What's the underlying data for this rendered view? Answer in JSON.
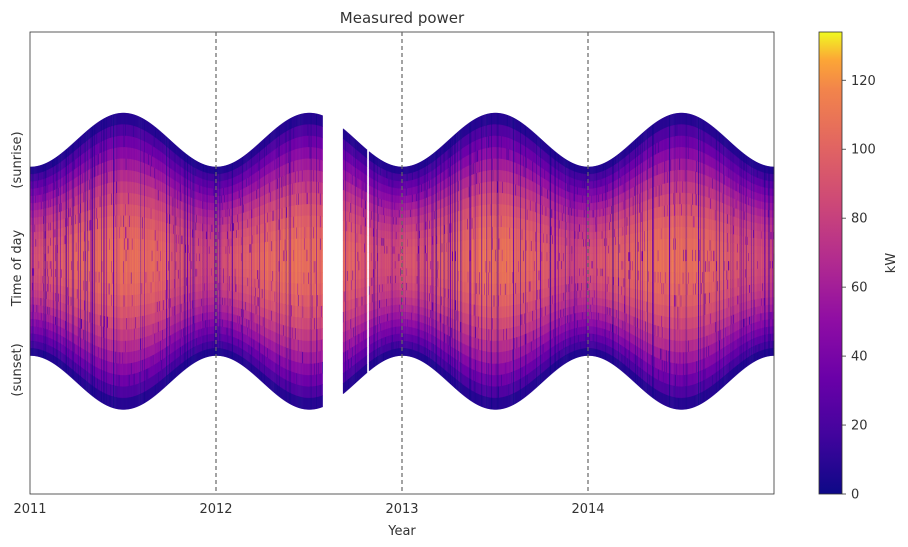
{
  "chart_data": {
    "type": "heatmap",
    "title": "Measured power",
    "xlabel": "Year",
    "ylabel": "Time of day",
    "y_tick_labels": [
      "(sunrise)",
      "(sunset)"
    ],
    "x_ticks": [
      "2011",
      "2012",
      "2013",
      "2014"
    ],
    "x_range": [
      2011.0,
      2015.0
    ],
    "vertical_reference_lines": [
      2012.0,
      2013.0,
      2014.0
    ],
    "colorbar": {
      "label": "kW",
      "colormap": "plasma",
      "range": [
        0,
        134
      ],
      "ticks": [
        0,
        20,
        40,
        60,
        80,
        100,
        120
      ]
    },
    "data_gaps_years": [
      [
        2012.57,
        2012.68
      ],
      [
        2012.81,
        2012.82
      ]
    ],
    "envelope": {
      "description_units": "hours of day",
      "earliest_sunrise_hours": 4.2,
      "latest_sunrise_hours": 7.0,
      "earliest_sunset_hours": 16.8,
      "latest_sunset_hours": 19.6
    },
    "peak_power_kW": 134,
    "grid": false,
    "colorbar_position": "right"
  }
}
